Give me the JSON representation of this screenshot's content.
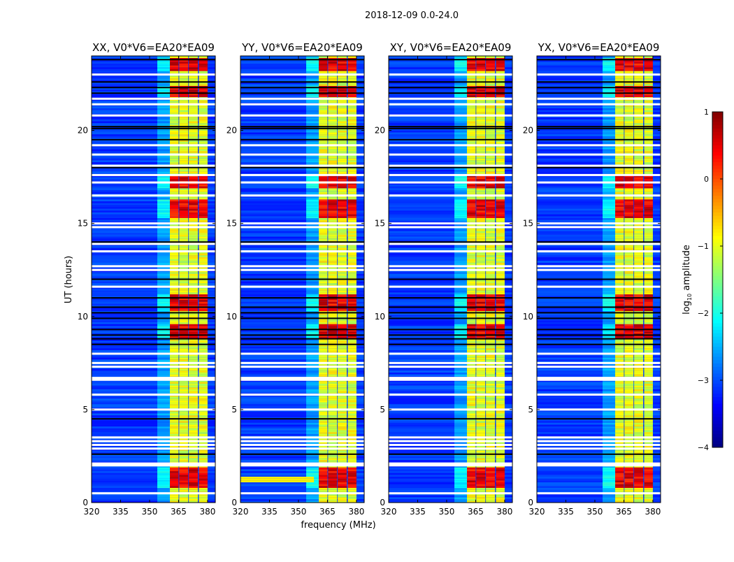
{
  "chart_data": {
    "type": "heatmap",
    "title": "2018-12-09 0.0-24.0",
    "xlabel": "frequency (MHz)",
    "ylabel": "UT (hours)",
    "xlim": [
      320,
      384
    ],
    "ylim": [
      0,
      24
    ],
    "xticks": [
      "320",
      "335",
      "350",
      "365",
      "380"
    ],
    "yticks": [
      "0",
      "5",
      "10",
      "15",
      "20"
    ],
    "panels": [
      {
        "title": "XX, V0*V6=EA20*EA09",
        "low_freq_bright_interval": null
      },
      {
        "title": "YY, V0*V6=EA20*EA09",
        "low_freq_bright_interval": [
          1.05,
          1.35
        ]
      },
      {
        "title": "XY, V0*V6=EA20*EA09",
        "low_freq_bright_interval": null
      },
      {
        "title": "YX, V0*V6=EA20*EA09",
        "low_freq_bright_interval": null
      }
    ],
    "background_level_log10": -3.1,
    "rfi_subbands_mhz": [
      [
        360.5,
        365
      ],
      [
        365.3,
        370
      ],
      [
        370.3,
        375
      ],
      [
        375.5,
        380
      ]
    ],
    "rfi_base_level_log10": -1.0,
    "strong_rfi_intervals_hours": [
      [
        23.2,
        23.9
      ],
      [
        21.8,
        22.4
      ],
      [
        16.9,
        17.5
      ],
      [
        15.3,
        16.2
      ],
      [
        10.3,
        11.2
      ],
      [
        8.8,
        9.5
      ],
      [
        0.8,
        1.9
      ]
    ],
    "flagged_white_hours": [
      23.0,
      21.7,
      21.4,
      20.8,
      19.2,
      18.7,
      18.1,
      17.6,
      17.2,
      16.5,
      15.0,
      14.8,
      13.9,
      13.5,
      12.7,
      12.5,
      11.6,
      8.0,
      7.5,
      7.3,
      6.7,
      6.6,
      5.8,
      5.0,
      3.5,
      3.3,
      3.1,
      2.9,
      2.1,
      2.0,
      0.5
    ],
    "flagged_black_hours": [
      23.8,
      22.6,
      22.3,
      22.0,
      20.2,
      20.1,
      19.5,
      18.0,
      14.0,
      12.0,
      11.0,
      10.5,
      10.2,
      9.9,
      9.3,
      9.0,
      8.8,
      8.5,
      4.5,
      2.6
    ],
    "colorbar": {
      "label": "log",
      "label_sub": "10",
      "label_rest": " amplitude",
      "range": [
        -4,
        1
      ],
      "ticks": [
        "1",
        "0",
        "−1",
        "−2",
        "−3",
        "−4"
      ],
      "colormap": "jet"
    }
  }
}
